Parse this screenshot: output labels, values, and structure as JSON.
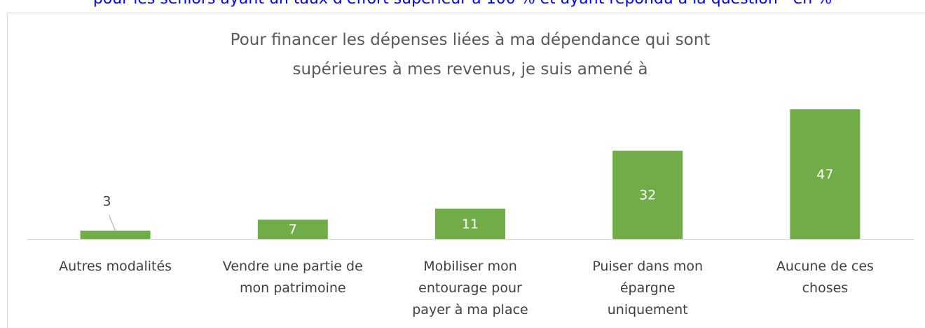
{
  "subtitle": "pour les seniors ayant un taux d'effort supérieur à 100 % et ayant répondu à la question - en %",
  "chart_data": {
    "type": "bar",
    "title": "Pour financer les dépenses liées à ma dépendance qui sont supérieures à mes revenus, je suis amené à",
    "categories": [
      "Autres modalités",
      "Vendre une partie de mon patrimoine",
      "Mobiliser mon entourage pour payer à ma place",
      "Puiser dans mon épargne uniquement",
      "Aucune de ces choses"
    ],
    "values": [
      3,
      7,
      11,
      32,
      47
    ],
    "color": "#70ad47"
  }
}
